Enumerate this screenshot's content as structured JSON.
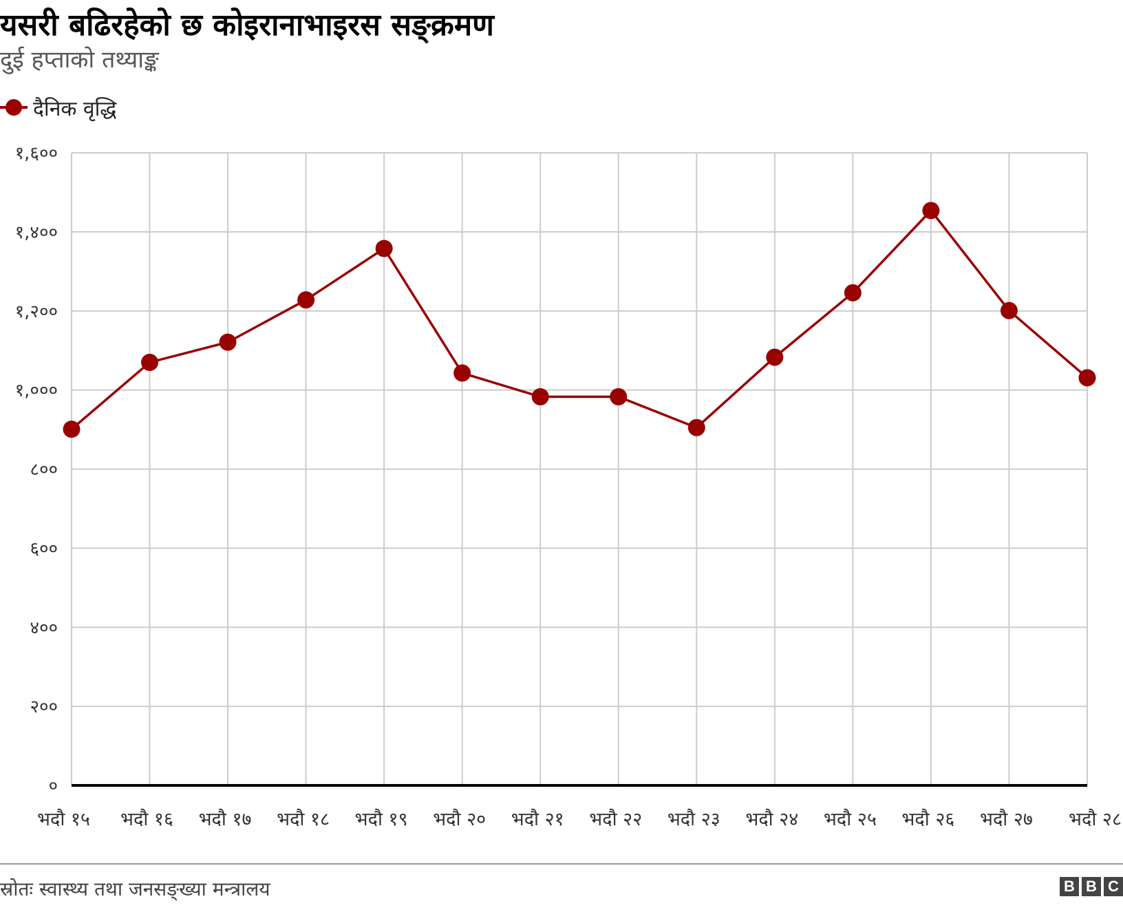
{
  "title": "यसरी बढिरहेको छ कोइरानाभाइरस सङ्क्रमण",
  "subtitle": "दुई हप्ताको तथ्याङ्क",
  "source": "स्रोतः स्वास्थ्य तथा जनसङ्ख्या मन्त्रालय",
  "brand": {
    "letters": [
      "B",
      "B",
      "C"
    ]
  },
  "colors": {
    "series": "#990000",
    "grid": "#cccccc",
    "baseline": "#000000"
  },
  "chart_data": {
    "type": "line",
    "title": "यसरी बढिरहेको छ कोइरानाभाइरस सङ्क्रमण",
    "subtitle": "दुई हप्ताको तथ्याङ्क",
    "categories": [
      "भदौ १५",
      "भदौ १६",
      "भदौ १७",
      "भदौ १८",
      "भदौ १९",
      "भदौ २०",
      "भदौ २१",
      "भदौ २२",
      "भदौ २३",
      "भदौ २४",
      "भदौ २५",
      "भदौ २६",
      "भदौ २७",
      "भदौ २८"
    ],
    "series": [
      {
        "name": "दैनिक वृद्धि",
        "color": "#990000",
        "values": [
          901,
          1070,
          1121,
          1228,
          1358,
          1043,
          983,
          983,
          905,
          1083,
          1246,
          1454,
          1201,
          1031
        ]
      }
    ],
    "ylim": [
      0,
      1600
    ],
    "yticks": [
      0,
      200,
      400,
      600,
      800,
      1000,
      1200,
      1400,
      1600
    ],
    "ytick_labels": [
      "०",
      "२००",
      "४००",
      "६००",
      "८००",
      "१,०००",
      "१,२००",
      "१,४००",
      "१,६००"
    ],
    "xlabel": "",
    "ylabel": "",
    "grid": true,
    "legend": "top-left"
  }
}
